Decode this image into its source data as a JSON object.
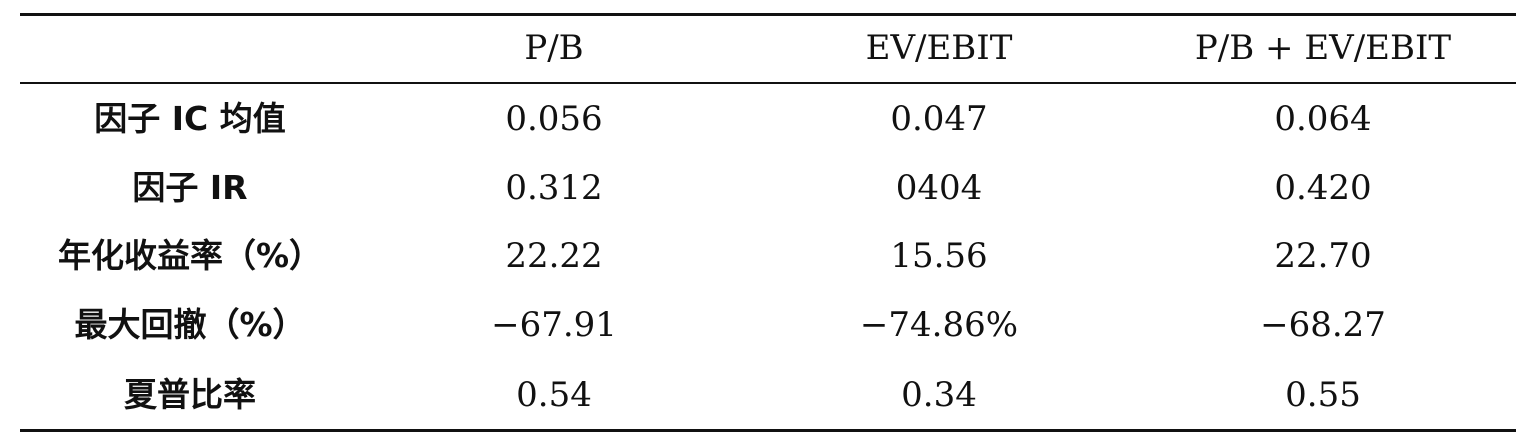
{
  "table": {
    "headers": [
      "",
      "P/B",
      "EV/EBIT",
      "P/B + EV/EBIT"
    ],
    "rows": [
      {
        "label": "因子 IC 均值",
        "values": [
          "0.056",
          "0.047",
          "0.064"
        ]
      },
      {
        "label": "因子 IR",
        "values": [
          "0.312",
          "0404",
          "0.420"
        ]
      },
      {
        "label": "年化收益率（%）",
        "values": [
          "22.22",
          "15.56",
          "22.70"
        ]
      },
      {
        "label": "最大回撤（%）",
        "values": [
          "−67.91",
          "−74.86%",
          "−68.27"
        ]
      },
      {
        "label": "夏普比率",
        "values": [
          "0.54",
          "0.34",
          "0.55"
        ]
      }
    ]
  }
}
